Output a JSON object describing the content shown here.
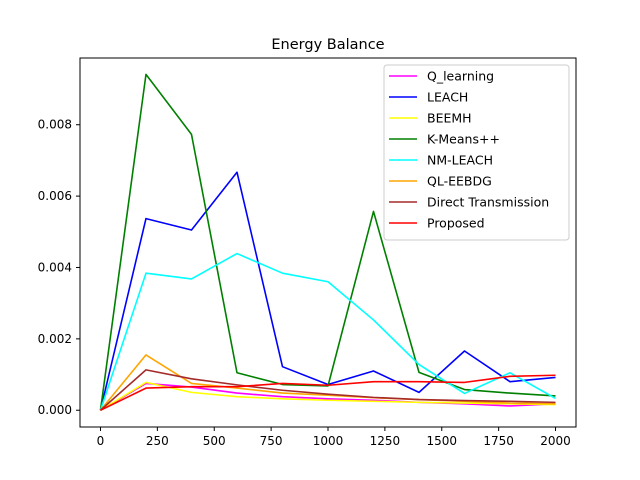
{
  "chart_data": {
    "type": "line",
    "title": "Energy Balance",
    "xlabel": "",
    "ylabel": "",
    "x": [
      0,
      200,
      400,
      600,
      800,
      1000,
      1200,
      1400,
      1600,
      1800,
      2000
    ],
    "xlim": [
      -90,
      2090
    ],
    "ylim": [
      -0.00047,
      0.00987
    ],
    "xticks": [
      0,
      250,
      500,
      750,
      1000,
      1250,
      1500,
      1750,
      2000
    ],
    "xtick_labels": [
      "0",
      "250",
      "500",
      "750",
      "1000",
      "1250",
      "1500",
      "1750",
      "2000"
    ],
    "yticks": [
      0,
      0.002,
      0.004,
      0.006,
      0.008
    ],
    "ytick_labels": [
      "0.000",
      "0.002",
      "0.004",
      "0.006",
      "0.008"
    ],
    "grid": false,
    "legend_position": "top-right",
    "series": [
      {
        "name": "Q_learning",
        "color": "#ff00ff",
        "values": [
          0.0,
          0.00075,
          0.00065,
          0.00048,
          0.00038,
          0.00032,
          0.00028,
          0.00022,
          0.00018,
          0.00012,
          0.00018
        ]
      },
      {
        "name": "LEACH",
        "color": "#0000ff",
        "values": [
          0.0,
          0.00537,
          0.00505,
          0.00667,
          0.00122,
          0.00072,
          0.0011,
          0.0005,
          0.00166,
          0.0008,
          0.00092
        ]
      },
      {
        "name": "BEEMH",
        "color": "#ffff00",
        "values": [
          0.0,
          0.00078,
          0.0005,
          0.00038,
          0.00032,
          0.00028,
          0.00025,
          0.00022,
          0.0002,
          0.00018,
          0.00016
        ]
      },
      {
        "name": "K-Means++",
        "color": "#008000",
        "values": [
          0.0,
          0.00941,
          0.00773,
          0.00105,
          0.00072,
          0.00068,
          0.00557,
          0.00106,
          0.00058,
          0.00048,
          0.0004
        ]
      },
      {
        "name": "NM-LEACH",
        "color": "#00ffff",
        "values": [
          0.0,
          0.00384,
          0.00368,
          0.00439,
          0.00384,
          0.0036,
          0.00253,
          0.00128,
          0.00047,
          0.00105,
          0.00033
        ]
      },
      {
        "name": "QL-EEBDG",
        "color": "#ffa500",
        "values": [
          0.0,
          0.00155,
          0.00075,
          0.00062,
          0.00048,
          0.00042,
          0.00035,
          0.0003,
          0.00025,
          0.0002,
          0.00018
        ]
      },
      {
        "name": "Direct Transmission",
        "color": "#a52a2a",
        "values": [
          0.0,
          0.00113,
          0.00088,
          0.00071,
          0.00056,
          0.00045,
          0.00036,
          0.0003,
          0.00027,
          0.00025,
          0.00022
        ]
      },
      {
        "name": "Proposed",
        "color": "#ff0000",
        "values": [
          0.0,
          0.00062,
          0.00066,
          0.00066,
          0.00075,
          0.0007,
          0.0008,
          0.0008,
          0.00078,
          0.00095,
          0.00098
        ]
      }
    ]
  }
}
